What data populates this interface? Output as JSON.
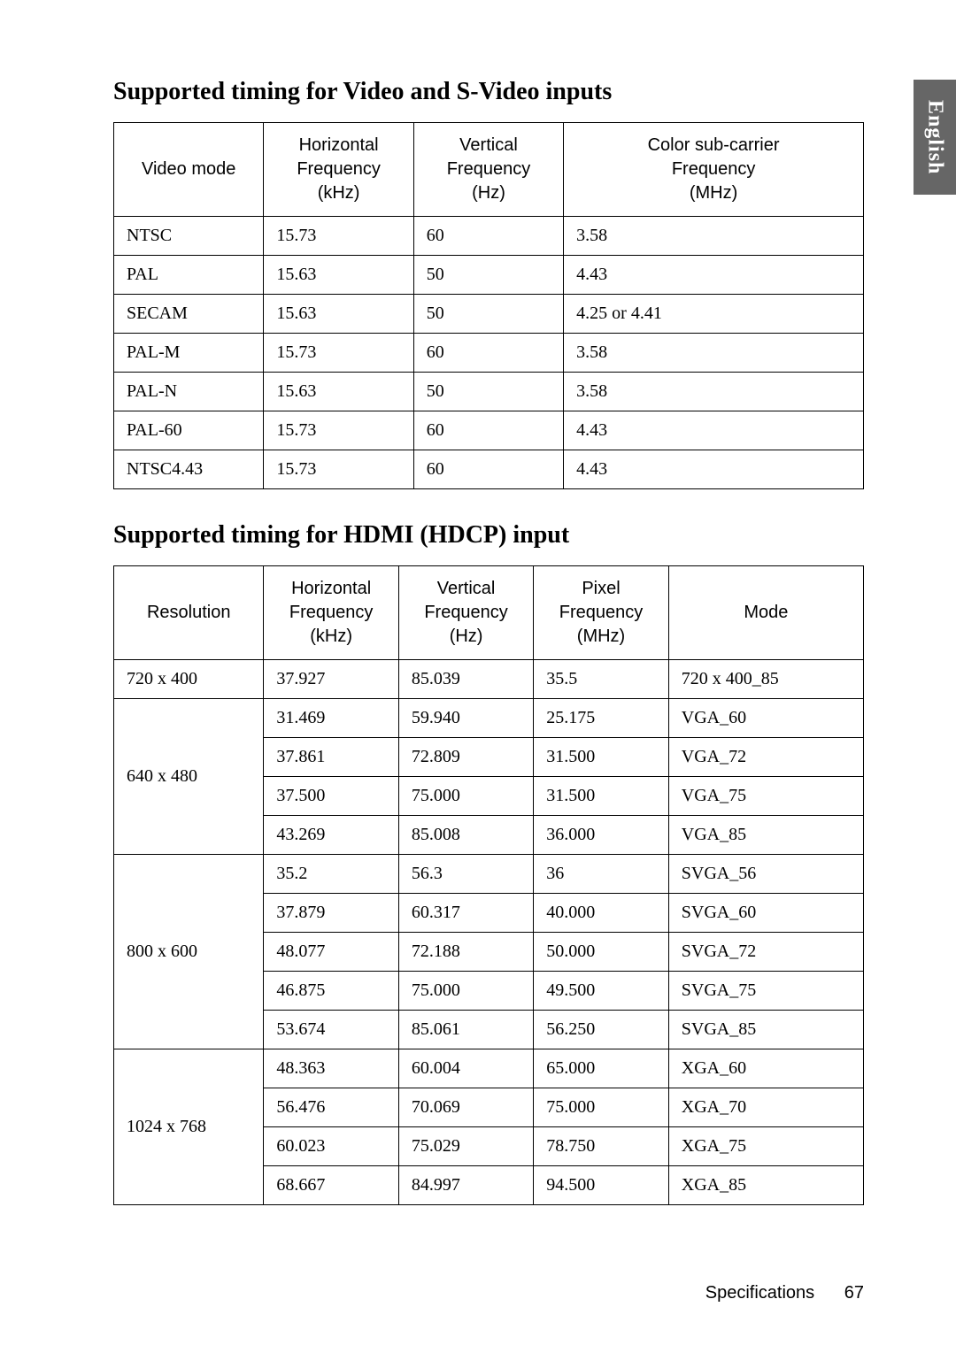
{
  "sideTab": "English",
  "section1": {
    "title": "Supported timing for Video and S-Video inputs",
    "headers": [
      "Video mode",
      "Horizontal\nFrequency\n(kHz)",
      "Vertical\nFrequency\n(Hz)",
      "Color sub-carrier\nFrequency\n(MHz)"
    ],
    "rows": [
      [
        "NTSC",
        "15.73",
        "60",
        "3.58"
      ],
      [
        "PAL",
        "15.63",
        "50",
        "4.43"
      ],
      [
        "SECAM",
        "15.63",
        "50",
        "4.25 or 4.41"
      ],
      [
        "PAL-M",
        "15.73",
        "60",
        "3.58"
      ],
      [
        "PAL-N",
        "15.63",
        "50",
        "3.58"
      ],
      [
        "PAL-60",
        "15.73",
        "60",
        "4.43"
      ],
      [
        "NTSC4.43",
        "15.73",
        "60",
        "4.43"
      ]
    ]
  },
  "section2": {
    "title": "Supported timing for HDMI (HDCP) input",
    "headers": [
      "Resolution",
      "Horizontal\nFrequency\n(kHz)",
      "Vertical\nFrequency\n(Hz)",
      "Pixel\nFrequency\n(MHz)",
      "Mode"
    ],
    "groups": [
      {
        "res": "720 x 400",
        "rows": [
          [
            "37.927",
            "85.039",
            "35.5",
            "720 x 400_85"
          ]
        ]
      },
      {
        "res": "640 x 480",
        "rows": [
          [
            "31.469",
            "59.940",
            "25.175",
            "VGA_60"
          ],
          [
            "37.861",
            "72.809",
            "31.500",
            "VGA_72"
          ],
          [
            "37.500",
            "75.000",
            "31.500",
            "VGA_75"
          ],
          [
            "43.269",
            "85.008",
            "36.000",
            "VGA_85"
          ]
        ]
      },
      {
        "res": "800 x 600",
        "rows": [
          [
            "35.2",
            "56.3",
            "36",
            "SVGA_56"
          ],
          [
            "37.879",
            "60.317",
            "40.000",
            "SVGA_60"
          ],
          [
            "48.077",
            "72.188",
            "50.000",
            "SVGA_72"
          ],
          [
            "46.875",
            "75.000",
            "49.500",
            "SVGA_75"
          ],
          [
            "53.674",
            "85.061",
            "56.250",
            "SVGA_85"
          ]
        ]
      },
      {
        "res": "1024 x 768",
        "rows": [
          [
            "48.363",
            "60.004",
            "65.000",
            "XGA_60"
          ],
          [
            "56.476",
            "70.069",
            "75.000",
            "XGA_70"
          ],
          [
            "60.023",
            "75.029",
            "78.750",
            "XGA_75"
          ],
          [
            "68.667",
            "84.997",
            "94.500",
            "XGA_85"
          ]
        ]
      }
    ]
  },
  "footer": {
    "section": "Specifications",
    "page": "67"
  },
  "style": {
    "page_bg": "#ffffff",
    "text_color": "#000000",
    "border_color": "#000000",
    "tab_bg": "#666666",
    "tab_text": "#ffffff",
    "heading_fontsize_pt": 21,
    "header_font": "Arial",
    "body_font": "Times New Roman",
    "cell_fontsize_pt": 15
  }
}
